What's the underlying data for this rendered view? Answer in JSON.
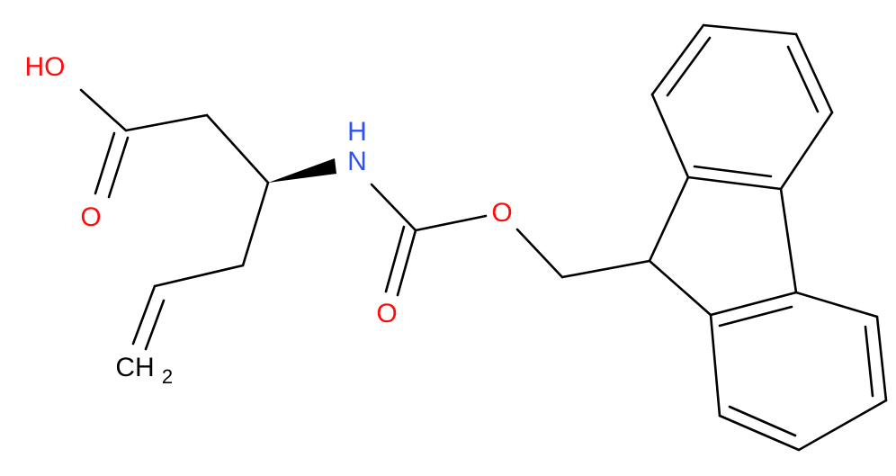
{
  "atoms": [
    {
      "label": "HO"
    },
    {
      "label": "O"
    },
    {
      "label": "H"
    },
    {
      "label": "N"
    },
    {
      "label": "O"
    },
    {
      "label": "O"
    },
    {
      "label": "CH",
      "subscript": "2"
    }
  ]
}
